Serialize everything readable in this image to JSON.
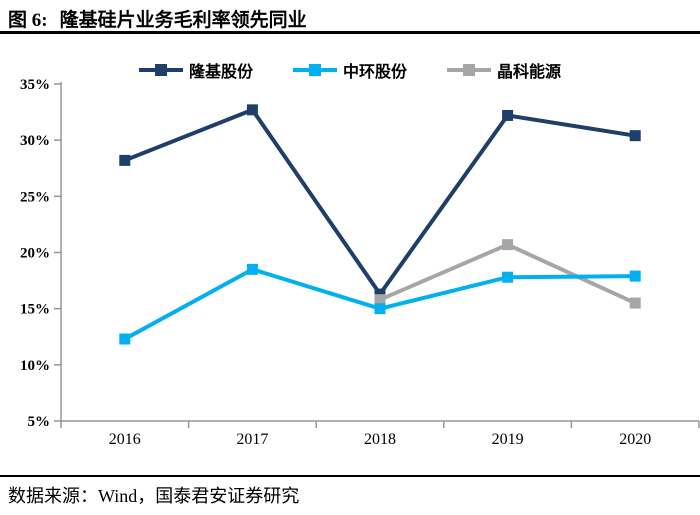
{
  "figure": {
    "label": "图 6:",
    "title": "隆基硅片业务毛利率领先同业"
  },
  "footer": {
    "source_note": "数据来源：Wind，国泰君安证券研究"
  },
  "colors": {
    "longi_navy": "#1F3F6B",
    "zhonghuan_cyan": "#00B0F0",
    "jinko_gray": "#A6A6A6",
    "axis_gray": "#969696"
  },
  "chart_data": {
    "type": "line",
    "title": "隆基硅片业务毛利率领先同业",
    "categories": [
      "2016",
      "2017",
      "2018",
      "2019",
      "2020"
    ],
    "series": [
      {
        "name": "隆基股份",
        "color": "#1F3F6B",
        "values": [
          28.2,
          32.7,
          16.3,
          32.2,
          30.4
        ]
      },
      {
        "name": "中环股份",
        "color": "#00B0F0",
        "values": [
          12.3,
          18.5,
          15.0,
          17.8,
          17.9
        ]
      },
      {
        "name": "晶科能源",
        "color": "#A6A6A6",
        "values": [
          null,
          null,
          15.8,
          20.7,
          15.5
        ]
      }
    ],
    "xlabel": "",
    "ylabel": "",
    "ylim": [
      5,
      35
    ],
    "ytick_step": 5,
    "ytick_suffix": "%",
    "marker": "square",
    "grid": false,
    "legend_position": "top"
  }
}
